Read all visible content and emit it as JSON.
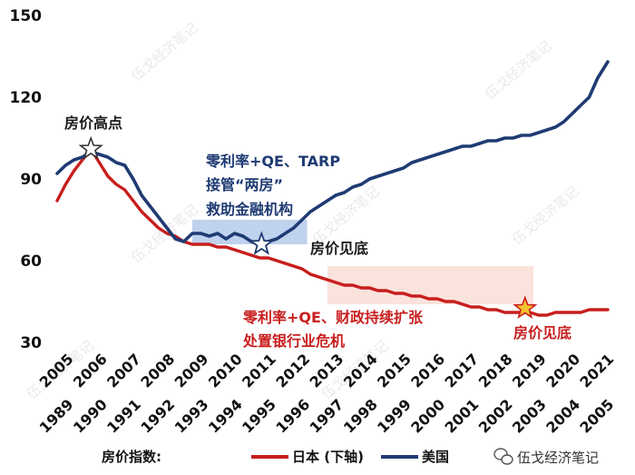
{
  "chart_data": {
    "type": "line",
    "ylim": [
      30,
      150
    ],
    "y_ticks": [
      "30",
      "60",
      "90",
      "120",
      "150"
    ],
    "x_top_ticks": [
      "2005",
      "2006",
      "2007",
      "2008",
      "2009",
      "2010",
      "2011",
      "2012",
      "2013",
      "2014",
      "2015",
      "2016",
      "2017",
      "2018",
      "2019",
      "2020",
      "2021"
    ],
    "x_bottom_ticks": [
      "1989",
      "1990",
      "1991",
      "1992",
      "1993",
      "1994",
      "1995",
      "1996",
      "1997",
      "1998",
      "1999",
      "2000",
      "2001",
      "2002",
      "2003",
      "2004",
      "2005"
    ],
    "xlim": [
      0,
      16.3
    ],
    "legend": {
      "prefix": "房价指数:",
      "placement": "bottom"
    },
    "series": [
      {
        "name": "美国",
        "color": "#1f3b73",
        "x": [
          0,
          0.25,
          0.5,
          0.75,
          1.0,
          1.25,
          1.5,
          1.75,
          2.0,
          2.25,
          2.5,
          2.75,
          3.0,
          3.25,
          3.5,
          3.75,
          4.0,
          4.25,
          4.5,
          4.75,
          5.0,
          5.25,
          5.5,
          5.75,
          6.0,
          6.25,
          6.5,
          6.75,
          7.0,
          7.25,
          7.5,
          7.75,
          8.0,
          8.25,
          8.5,
          8.75,
          9.0,
          9.25,
          9.5,
          9.75,
          10.0,
          10.25,
          10.5,
          10.75,
          11.0,
          11.25,
          11.5,
          11.75,
          12.0,
          12.25,
          12.5,
          12.75,
          13.0,
          13.25,
          13.5,
          13.75,
          14.0,
          14.25,
          14.5,
          14.75,
          15.0,
          15.25,
          15.5,
          15.75,
          16.0,
          16.3
        ],
        "values": [
          92,
          95,
          97,
          98,
          100,
          99,
          98,
          96,
          95,
          90,
          84,
          80,
          76,
          72,
          68,
          67,
          70,
          70,
          69,
          70,
          68,
          70,
          69,
          67,
          66,
          67,
          68,
          70,
          72,
          75,
          78,
          80,
          82,
          84,
          85,
          87,
          88,
          90,
          91,
          92,
          93,
          94,
          96,
          97,
          98,
          99,
          100,
          101,
          102,
          102,
          103,
          104,
          104,
          105,
          105,
          106,
          106,
          107,
          108,
          109,
          111,
          114,
          117,
          120,
          127,
          133
        ]
      },
      {
        "name": "日本 (下轴)",
        "color": "#c81e1e",
        "x": [
          0,
          0.25,
          0.5,
          0.75,
          1.0,
          1.25,
          1.5,
          1.75,
          2.0,
          2.25,
          2.5,
          2.75,
          3.0,
          3.25,
          3.5,
          3.75,
          4.0,
          4.25,
          4.5,
          4.75,
          5.0,
          5.25,
          5.5,
          5.75,
          6.0,
          6.25,
          6.5,
          6.75,
          7.0,
          7.25,
          7.5,
          7.75,
          8.0,
          8.25,
          8.5,
          8.75,
          9.0,
          9.25,
          9.5,
          9.75,
          10.0,
          10.25,
          10.5,
          10.75,
          11.0,
          11.25,
          11.5,
          11.75,
          12.0,
          12.25,
          12.5,
          12.75,
          13.0,
          13.25,
          13.5,
          13.75,
          14.0,
          14.25,
          14.5,
          14.75,
          15.0,
          15.25,
          15.5,
          15.75,
          16.0,
          16.3
        ],
        "values": [
          82,
          88,
          93,
          97,
          101,
          96,
          91,
          88,
          86,
          82,
          78,
          75,
          72,
          70,
          69,
          67,
          66,
          66,
          66,
          65,
          65,
          64,
          63,
          62,
          61,
          61,
          60,
          59,
          58,
          57,
          55,
          54,
          53,
          52,
          51,
          51,
          50,
          50,
          49,
          49,
          48,
          48,
          47,
          47,
          46,
          46,
          45,
          45,
          44,
          43,
          43,
          42,
          42,
          41,
          41,
          41,
          41,
          40,
          40,
          41,
          41,
          41,
          41,
          42,
          42,
          42
        ]
      }
    ]
  },
  "annotations": {
    "peak_label": "房价高点",
    "us_policy_line1": "零利率+QE、TARP",
    "us_policy_line2": "接管“两房”",
    "us_policy_line3": "救助金融机构",
    "us_bottom_label": "房价见底",
    "jp_policy_line1": "零利率+QE、财政持续扩张",
    "jp_policy_line2": "处置银行业危机",
    "jp_bottom_label": "房价见底"
  },
  "colors": {
    "us_line": "#1f3b73",
    "jp_line": "#c81e1e",
    "us_band": "#a9c3e8",
    "jp_band": "#f7d0c4",
    "peak_star": "#ffffff",
    "us_star": "#ffffff",
    "jp_star": "#f4c430"
  },
  "watermark": "伍戈经济笔记",
  "source_badge": "伍戈经济笔记"
}
